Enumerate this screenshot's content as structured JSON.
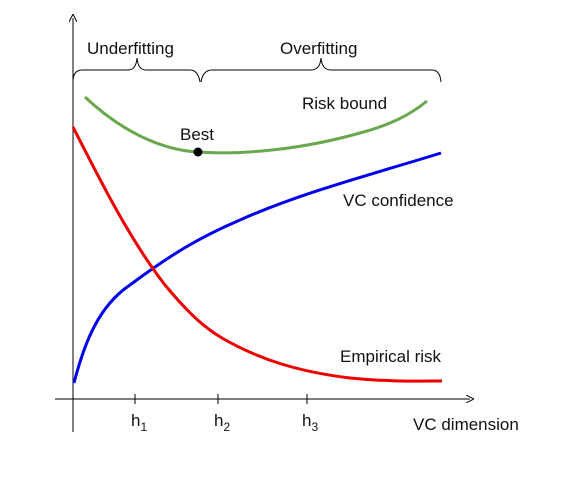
{
  "diagram": {
    "regions": {
      "underfitting": "Underfitting",
      "overfitting": "Overfitting"
    },
    "best_label": "Best",
    "x_axis_label": "VC dimension",
    "ticks": [
      {
        "base": "h",
        "sub": "1"
      },
      {
        "base": "h",
        "sub": "2"
      },
      {
        "base": "h",
        "sub": "3"
      }
    ],
    "curves": {
      "risk_bound": {
        "label": "Risk bound",
        "color": "#6aa84f"
      },
      "vc_confidence": {
        "label": "VC confidence",
        "color": "#0000ee"
      },
      "empirical_risk": {
        "label": "Empirical risk",
        "color": "#ee0000"
      }
    },
    "colors": {
      "axes": "#000000",
      "best_point": "#000000"
    }
  }
}
